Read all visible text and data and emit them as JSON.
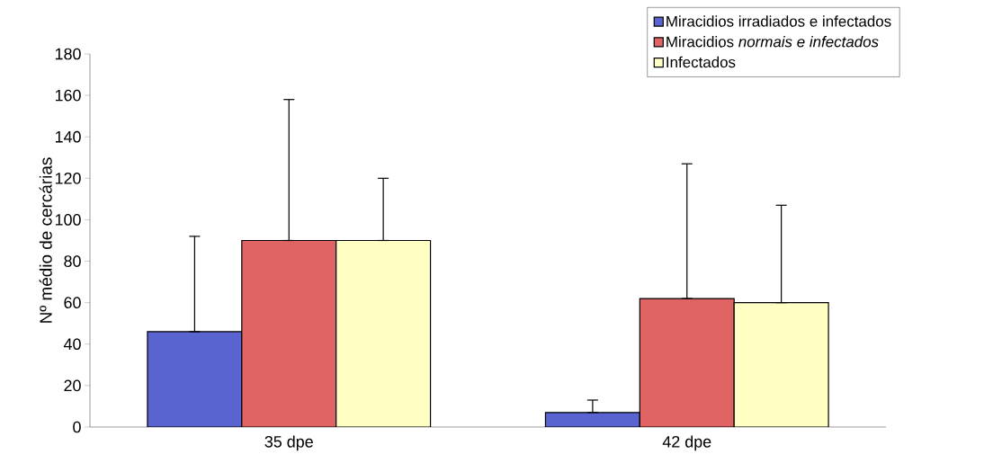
{
  "chart_data": {
    "type": "bar",
    "ylabel": "Nº médio de cercárias",
    "categories": [
      "35 dpe",
      "42 dpe"
    ],
    "series": [
      {
        "name": "Miracidios irradiados e infectados",
        "color": "#5a64d0",
        "values": [
          46,
          7
        ],
        "errors": [
          [
            46,
            92
          ],
          [
            7,
            13
          ]
        ]
      },
      {
        "name": "Miracidios *normais e infectados*",
        "color": "#e06464",
        "values": [
          90,
          62
        ],
        "errors": [
          [
            90,
            158
          ],
          [
            62,
            127
          ]
        ]
      },
      {
        "name": "Infectados",
        "color": "#ffffc4",
        "values": [
          90,
          60
        ],
        "errors": [
          [
            90,
            120
          ],
          [
            60,
            107
          ]
        ]
      }
    ],
    "ylim": [
      0,
      180
    ],
    "yticks": [
      0,
      20,
      40,
      60,
      80,
      100,
      120,
      140,
      160,
      180
    ],
    "grid": false,
    "legend": "top right"
  }
}
